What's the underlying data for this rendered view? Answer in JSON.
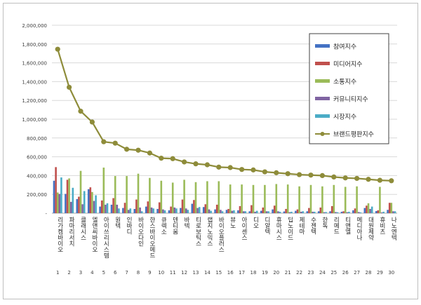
{
  "chart_data": {
    "type": "bar",
    "categories": [
      "리가켐바이오",
      "파마리서치",
      "클래시스",
      "엘앤씨바이오",
      "아이쓰리시스템",
      "원텍",
      "인바디",
      "바이오다인",
      "한스바이오메드",
      "큐렉소",
      "덴티움",
      "바텍",
      "티로보틱스",
      "랩지노믹스",
      "바이오플러스",
      "뷰노",
      "아이센스",
      "디오",
      "디알텍",
      "휴마시스",
      "딥노이드",
      "제테마",
      "수젠텍",
      "한독",
      "리메드",
      "티앤엘",
      "메디아나",
      "대원제약",
      "휴비츠",
      "나노엔텍"
    ],
    "category_numbers": [
      "1",
      "2",
      "3",
      "4",
      "5",
      "6",
      "7",
      "8",
      "9",
      "10",
      "11",
      "12",
      "13",
      "14",
      "15",
      "16",
      "17",
      "18",
      "19",
      "20",
      "21",
      "22",
      "23",
      "24",
      "25",
      "26",
      "27",
      "28",
      "29",
      "30"
    ],
    "ylim": [
      0,
      2000000
    ],
    "yticks": [
      "-",
      "200,000",
      "400,000",
      "600,000",
      "800,000",
      "1,000,000",
      "1,200,000",
      "1,400,000",
      "1,600,000",
      "1,800,000",
      "2,000,000"
    ],
    "grid": true,
    "legend_position": "top-right",
    "series": [
      {
        "name": "참여지수",
        "kind": "bar",
        "color": "#4472c4",
        "values": [
          345000,
          205000,
          150000,
          255000,
          70000,
          90000,
          55000,
          45000,
          70000,
          45000,
          30000,
          55000,
          100000,
          65000,
          40000,
          35000,
          30000,
          20000,
          25000,
          40000,
          18000,
          25000,
          20000,
          20000,
          20000,
          15000,
          30000,
          55000,
          22000,
          35000
        ]
      },
      {
        "name": "미디어지수",
        "kind": "bar",
        "color": "#c0504d",
        "values": [
          490000,
          355000,
          175000,
          275000,
          135000,
          160000,
          110000,
          145000,
          125000,
          115000,
          70000,
          145000,
          140000,
          95000,
          90000,
          45000,
          75000,
          85000,
          60000,
          80000,
          45000,
          40000,
          55000,
          60000,
          75000,
          20000,
          50000,
          80000,
          30000,
          110000
        ]
      },
      {
        "name": "소통지수",
        "kind": "bar",
        "color": "#9bbb59",
        "values": [
          220000,
          370000,
          450000,
          225000,
          485000,
          395000,
          395000,
          420000,
          375000,
          345000,
          325000,
          355000,
          330000,
          340000,
          340000,
          305000,
          305000,
          300000,
          300000,
          310000,
          305000,
          285000,
          300000,
          285000,
          300000,
          280000,
          285000,
          105000,
          280000,
          110000
        ]
      },
      {
        "name": "커뮤니티지수",
        "kind": "bar",
        "color": "#8064a2",
        "values": [
          205000,
          120000,
          95000,
          130000,
          90000,
          90000,
          35000,
          60000,
          60000,
          40000,
          60000,
          50000,
          55000,
          40000,
          35000,
          25000,
          20000,
          15000,
          20000,
          20000,
          10000,
          15000,
          15000,
          10000,
          12000,
          10000,
          12000,
          45000,
          8000,
          20000
        ]
      },
      {
        "name": "시장지수",
        "kind": "bar",
        "color": "#4bacc6",
        "values": [
          380000,
          270000,
          235000,
          190000,
          105000,
          50000,
          50000,
          20000,
          50000,
          30000,
          50000,
          35000,
          65000,
          25000,
          20000,
          30000,
          20000,
          25000,
          20000,
          15000,
          15000,
          20000,
          15000,
          12000,
          10000,
          15000,
          8000,
          70000,
          15000,
          20000
        ]
      },
      {
        "name": "브랜드평판지수",
        "kind": "line",
        "color": "#8e8c3a",
        "values": [
          1745000,
          1340000,
          1085000,
          970000,
          760000,
          745000,
          680000,
          670000,
          640000,
          585000,
          580000,
          545000,
          525000,
          515000,
          490000,
          485000,
          465000,
          460000,
          440000,
          430000,
          420000,
          410000,
          405000,
          400000,
          385000,
          375000,
          370000,
          360000,
          350000,
          345000
        ]
      }
    ]
  }
}
